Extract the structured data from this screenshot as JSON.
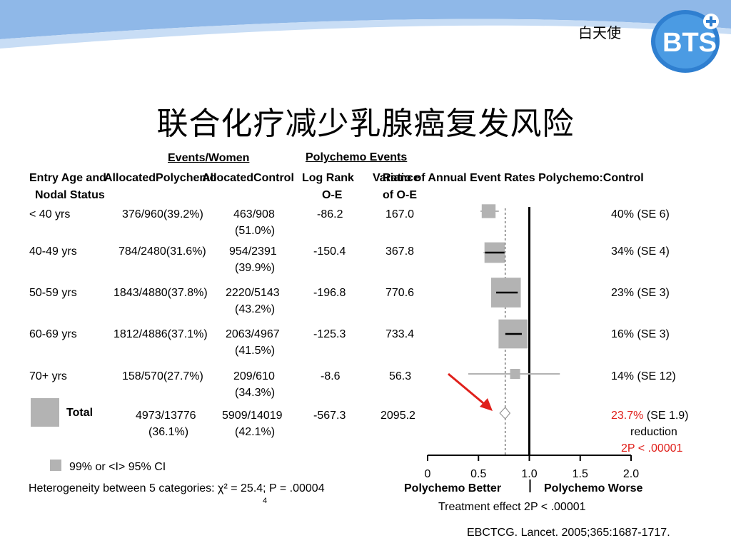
{
  "brand": {
    "text": "白天使",
    "logo_text": "BTS",
    "logo_color": "#2f7fd0"
  },
  "slide_title": "联合化疗减少乳腺癌复发风险",
  "table": {
    "group_header_events": "Events/Women",
    "group_header_polychemo": "Polychemo Events",
    "headers": {
      "entry_line1": "Entry Age and",
      "entry_line2": "Nodal Status",
      "allocated_polychemo": "AllocatedPolychemo",
      "allocated_control": "AllocatedControl",
      "logrank_line1": "Log Rank",
      "logrank_line2": "O-E",
      "variance_line1": "Variance",
      "variance_line2": "of O-E",
      "ratio_header": "Ratio of Annual Event Rates Polychemo:Control"
    },
    "rows": [
      {
        "label": "< 40 yrs",
        "poly": "376/960(39.2%)",
        "control_1": "463/908",
        "control_2": "(51.0%)",
        "oe": "-86.2",
        "var": "167.0",
        "reduction": "40% (SE 6)"
      },
      {
        "label": "40-49 yrs",
        "poly": "784/2480(31.6%)",
        "control_1": "954/2391",
        "control_2": "(39.9%)",
        "oe": "-150.4",
        "var": "367.8",
        "reduction": "34% (SE 4)"
      },
      {
        "label": "50-59 yrs",
        "poly": "1843/4880(37.8%)",
        "control_1": "2220/5143",
        "control_2": "(43.2%)",
        "oe": "-196.8",
        "var": "770.6",
        "reduction": "23% (SE 3)"
      },
      {
        "label": "60-69 yrs",
        "poly": "1812/4886(37.1%)",
        "control_1": "2063/4967",
        "control_2": "(41.5%)",
        "oe": "-125.3",
        "var": "733.4",
        "reduction": "16% (SE 3)"
      },
      {
        "label": "70+ yrs",
        "poly": "158/570(27.7%)",
        "control_1": "209/610",
        "control_2": "(34.3%)",
        "oe": "-8.6",
        "var": "56.3",
        "reduction": "14% (SE 12)"
      }
    ],
    "total": {
      "label": "Total",
      "poly_1": "4973/13776",
      "poly_2": "(36.1%)",
      "control_1": "5909/14019",
      "control_2": "(42.1%)",
      "oe": "-567.3",
      "var": "2095.2",
      "reduction_pct": "23.7%",
      "reduction_se": " (SE 1.9)",
      "reduction_word": "reduction",
      "p_value": "2P < .00001"
    }
  },
  "legend": {
    "ci_label": "99% or <I> 95% CI"
  },
  "heterogeneity": {
    "text": "Heterogeneity between 5 categories: χ² = 25.4; P = .00004",
    "subscript": "4"
  },
  "axis_labels": {
    "better": "Polychemo Better",
    "worse": "Polychemo Worse",
    "treatment_effect": "Treatment effect 2P < .00001"
  },
  "citation": "EBCTCG. Lancet. 2005;365:1687-1717.",
  "chart_data": {
    "type": "forest",
    "xlabel_left": "Polychemo Better",
    "xlabel_right": "Polychemo Worse",
    "xlim": [
      0,
      2.0
    ],
    "ticks": [
      "0",
      "0.5",
      "1.0",
      "1.5",
      "2.0"
    ],
    "tick_values": [
      0,
      0.5,
      1.0,
      1.5,
      2.0
    ],
    "reference_line": 1.0,
    "overall_line": 0.763,
    "colors": {
      "box": "#b3b3b3",
      "ci": "#b3b3b3",
      "axis": "#000000",
      "arrow": "#e0201b"
    },
    "series": [
      {
        "label": "< 40 yrs",
        "ratio": 0.6,
        "ci_low": 0.52,
        "ci_high": 0.7,
        "weight": 167.0
      },
      {
        "label": "40-49 yrs",
        "ratio": 0.66,
        "ci_low": 0.55,
        "ci_high": 0.77,
        "weight": 367.8
      },
      {
        "label": "50-59 yrs",
        "ratio": 0.77,
        "ci_low": 0.66,
        "ci_high": 0.9,
        "weight": 770.6
      },
      {
        "label": "60-69 yrs",
        "ratio": 0.84,
        "ci_low": 0.75,
        "ci_high": 0.94,
        "weight": 733.4
      },
      {
        "label": "70+ yrs",
        "ratio": 0.86,
        "ci_low": 0.4,
        "ci_high": 1.3,
        "weight": 56.3
      }
    ],
    "total": {
      "ratio": 0.763,
      "ci_low": 0.71,
      "ci_high": 0.81
    }
  }
}
